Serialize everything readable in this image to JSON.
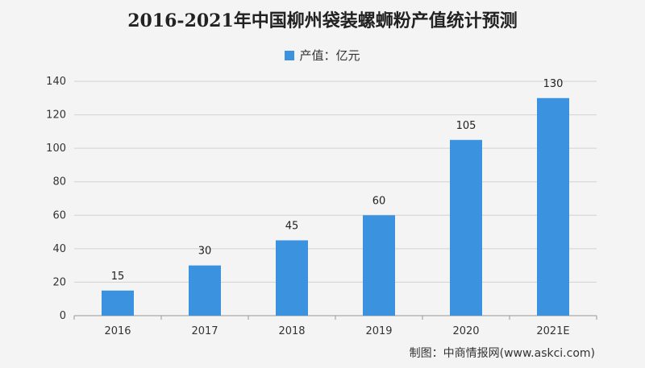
{
  "chart_data": {
    "type": "bar",
    "title": "2016-2021年中国柳州袋装螺蛳粉产值统计预测",
    "categories": [
      "2016",
      "2017",
      "2018",
      "2019",
      "2020",
      "2021E"
    ],
    "series": [
      {
        "name": "产值：亿元",
        "values": [
          15,
          30,
          45,
          60,
          105,
          130
        ]
      }
    ],
    "ylim": [
      0,
      140
    ],
    "yticks": [
      0,
      20,
      40,
      60,
      80,
      100,
      120,
      140
    ],
    "grid": true,
    "legend": "top-center",
    "bar_color": "#3b93e0"
  },
  "source": "制图：中商情报网(www.askci.com)"
}
